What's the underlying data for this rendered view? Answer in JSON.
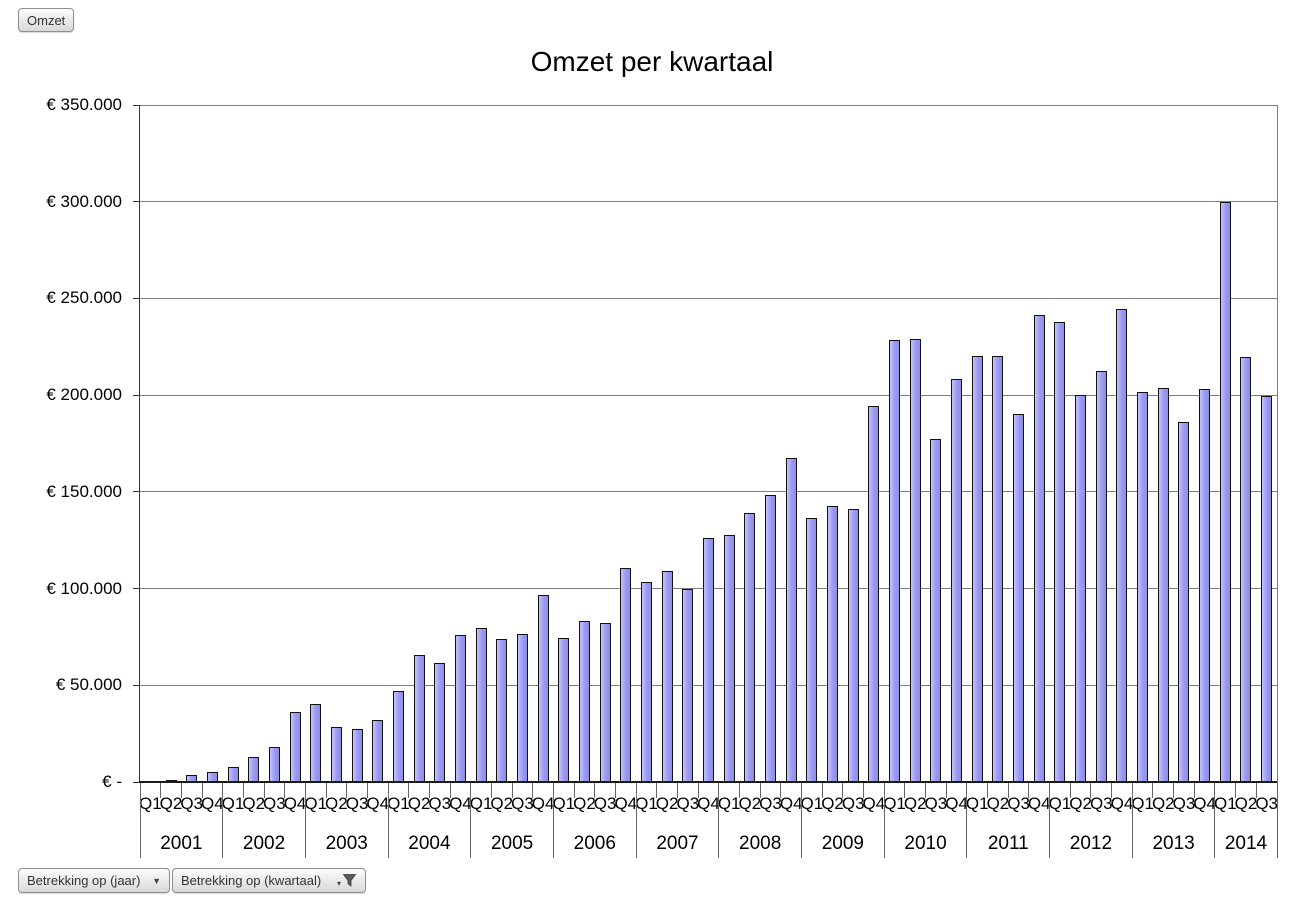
{
  "pivot_buttons": {
    "data_field": "Omzet",
    "year_field": "Betrekking op (jaar)",
    "quarter_field": "Betrekking op (kwartaal)",
    "dropdown_icon": "▼",
    "funnel_caret": "▾"
  },
  "chart_data": {
    "type": "bar",
    "title": "Omzet per kwartaal",
    "series_name": "Omzet",
    "ylim": [
      0,
      350000
    ],
    "ytick_step": 50000,
    "ytick_labels": [
      "€ -",
      "€ 50.000",
      "€ 100.000",
      "€ 150.000",
      "€ 200.000",
      "€ 250.000",
      "€ 300.000",
      "€ 350.000"
    ],
    "grid": "horizontal",
    "bar_fill": "#9999f2",
    "bar_border": "#111111",
    "years": [
      {
        "year": "2001",
        "quarters": [
          "Q1",
          "Q2",
          "Q3",
          "Q4"
        ],
        "values": [
          0,
          1000,
          3500,
          5300
        ]
      },
      {
        "year": "2002",
        "quarters": [
          "Q1",
          "Q2",
          "Q3",
          "Q4"
        ],
        "values": [
          7800,
          13000,
          18300,
          36200
        ]
      },
      {
        "year": "2003",
        "quarters": [
          "Q1",
          "Q2",
          "Q3",
          "Q4"
        ],
        "values": [
          40500,
          28200,
          27400,
          32200
        ]
      },
      {
        "year": "2004",
        "quarters": [
          "Q1",
          "Q2",
          "Q3",
          "Q4"
        ],
        "values": [
          47000,
          65500,
          61500,
          76000
        ]
      },
      {
        "year": "2005",
        "quarters": [
          "Q1",
          "Q2",
          "Q3",
          "Q4"
        ],
        "values": [
          79500,
          74000,
          76500,
          96700
        ]
      },
      {
        "year": "2006",
        "quarters": [
          "Q1",
          "Q2",
          "Q3",
          "Q4"
        ],
        "values": [
          74600,
          83000,
          82400,
          110800
        ]
      },
      {
        "year": "2007",
        "quarters": [
          "Q1",
          "Q2",
          "Q3",
          "Q4"
        ],
        "values": [
          103200,
          109200,
          100000,
          126000
        ]
      },
      {
        "year": "2008",
        "quarters": [
          "Q1",
          "Q2",
          "Q3",
          "Q4"
        ],
        "values": [
          127500,
          139000,
          148500,
          167700
        ]
      },
      {
        "year": "2009",
        "quarters": [
          "Q1",
          "Q2",
          "Q3",
          "Q4"
        ],
        "values": [
          136500,
          142600,
          141200,
          194500
        ]
      },
      {
        "year": "2010",
        "quarters": [
          "Q1",
          "Q2",
          "Q3",
          "Q4"
        ],
        "values": [
          228500,
          229200,
          177500,
          208500
        ]
      },
      {
        "year": "2011",
        "quarters": [
          "Q1",
          "Q2",
          "Q3",
          "Q4"
        ],
        "values": [
          220000,
          220300,
          190500,
          241500
        ]
      },
      {
        "year": "2012",
        "quarters": [
          "Q1",
          "Q2",
          "Q3",
          "Q4"
        ],
        "values": [
          237700,
          200000,
          212300,
          244500
        ]
      },
      {
        "year": "2013",
        "quarters": [
          "Q1",
          "Q2",
          "Q3",
          "Q4"
        ],
        "values": [
          201800,
          203800,
          186200,
          203000
        ]
      },
      {
        "year": "2014",
        "quarters": [
          "Q1",
          "Q2",
          "Q3"
        ],
        "values": [
          300000,
          219500,
          199500
        ]
      }
    ]
  }
}
